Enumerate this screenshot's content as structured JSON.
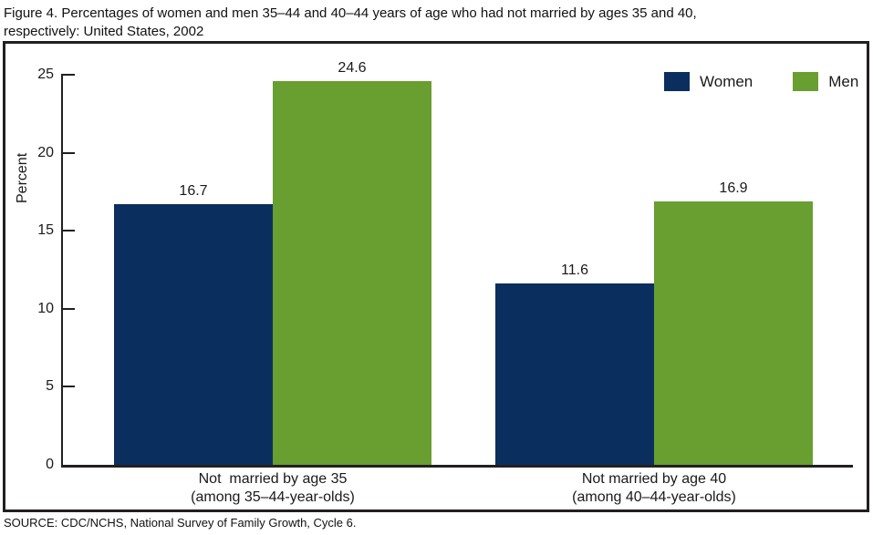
{
  "figure": {
    "title_line1": "Figure 4. Percentages of women and men 35–44 and 40–44 years of age who had not married by ages 35 and 40,",
    "title_line2": "respectively: United States, 2002",
    "source": "SOURCE: CDC/NCHS, National Survey of Family Growth, Cycle 6."
  },
  "chart_data": {
    "type": "bar",
    "title": "Percentages of women and men 35–44 and 40–44 years of age who had not married by ages 35 and 40, respectively: United States, 2002",
    "categories": [
      {
        "line1": "Not  married by age 35",
        "line2": "(among 35–44-year-olds)"
      },
      {
        "line1": "Not married by age 40",
        "line2": "(among 40–44-year-olds)"
      }
    ],
    "series": [
      {
        "name": "Women",
        "color": "#0a2f5e",
        "values": [
          16.7,
          11.6
        ]
      },
      {
        "name": "Men",
        "color": "#699e30",
        "values": [
          24.6,
          16.9
        ]
      }
    ],
    "xlabel": "",
    "ylabel": "Percent",
    "ylim": [
      0,
      25
    ],
    "yticks": [
      0,
      5,
      10,
      15,
      20,
      25
    ],
    "grid": false,
    "legend_position": "top-right",
    "value_labels": true
  }
}
